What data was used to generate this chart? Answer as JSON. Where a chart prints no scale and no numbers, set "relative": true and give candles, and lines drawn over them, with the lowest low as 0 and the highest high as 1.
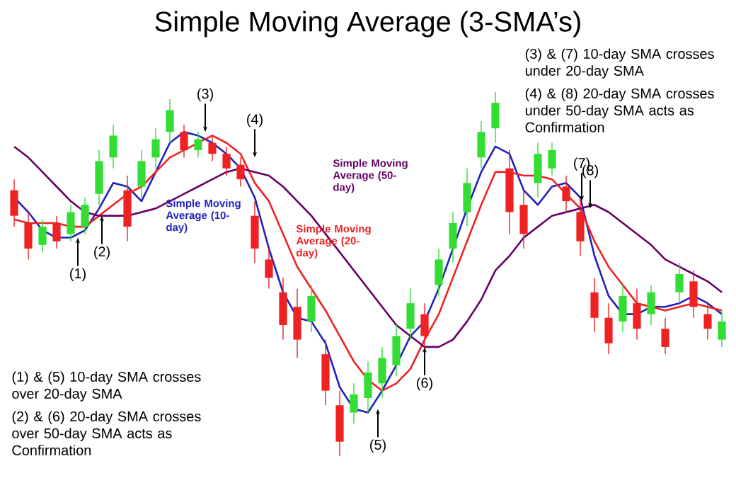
{
  "chart_data": {
    "type": "candlestick",
    "title": "Simple Moving Average (3-SMA’s)",
    "relative": true,
    "categories": [
      null,
      null,
      null,
      null,
      null,
      null,
      null,
      null,
      null,
      null,
      null,
      null,
      null,
      null,
      null,
      null,
      null,
      null,
      null,
      null,
      null,
      null,
      null,
      null,
      null,
      null,
      null,
      null,
      null,
      null,
      null,
      null,
      null,
      null,
      null,
      null,
      null,
      null,
      null,
      null,
      null,
      null,
      null,
      null,
      null,
      null,
      null,
      null,
      null,
      null,
      null
    ],
    "ohlc": [
      [
        0.73,
        0.76,
        0.63,
        0.66
      ],
      [
        0.64,
        0.67,
        0.54,
        0.57
      ],
      [
        0.58,
        0.65,
        0.56,
        0.63
      ],
      [
        0.64,
        0.66,
        0.57,
        0.59
      ],
      [
        0.61,
        0.69,
        0.59,
        0.67
      ],
      [
        0.63,
        0.71,
        0.61,
        0.69
      ],
      [
        0.72,
        0.84,
        0.69,
        0.81
      ],
      [
        0.82,
        0.91,
        0.79,
        0.88
      ],
      [
        0.73,
        0.77,
        0.59,
        0.63
      ],
      [
        0.74,
        0.84,
        0.71,
        0.81
      ],
      [
        0.82,
        0.9,
        0.79,
        0.87
      ],
      [
        0.89,
        0.98,
        0.86,
        0.95
      ],
      [
        0.89,
        0.91,
        0.82,
        0.84
      ],
      [
        0.84,
        0.89,
        0.82,
        0.87
      ],
      [
        0.86,
        0.88,
        0.81,
        0.83
      ],
      [
        0.83,
        0.85,
        0.77,
        0.79
      ],
      [
        0.8,
        0.82,
        0.74,
        0.76
      ],
      [
        0.66,
        0.7,
        0.53,
        0.57
      ],
      [
        0.54,
        0.57,
        0.46,
        0.49
      ],
      [
        0.45,
        0.49,
        0.32,
        0.36
      ],
      [
        0.41,
        0.46,
        0.27,
        0.32
      ],
      [
        0.37,
        0.47,
        0.34,
        0.44
      ],
      [
        0.28,
        0.32,
        0.14,
        0.18
      ],
      [
        0.14,
        0.18,
        0,
        0.04
      ],
      [
        0.12,
        0.2,
        0.09,
        0.17
      ],
      [
        0.16,
        0.26,
        0.12,
        0.23
      ],
      [
        0.2,
        0.3,
        0.16,
        0.27
      ],
      [
        0.25,
        0.36,
        0.22,
        0.33
      ],
      [
        0.35,
        0.46,
        0.32,
        0.42
      ],
      [
        0.39,
        0.42,
        0.3,
        0.33
      ],
      [
        0.47,
        0.57,
        0.44,
        0.54
      ],
      [
        0.57,
        0.67,
        0.53,
        0.64
      ],
      [
        0.67,
        0.79,
        0.63,
        0.75
      ],
      [
        0.82,
        0.92,
        0.79,
        0.89
      ],
      [
        0.9,
        1,
        0.86,
        0.97
      ],
      [
        0.79,
        0.84,
        0.61,
        0.67
      ],
      [
        0.69,
        0.73,
        0.57,
        0.61
      ],
      [
        0.75,
        0.86,
        0.71,
        0.83
      ],
      [
        0.79,
        0.86,
        0.77,
        0.84
      ],
      [
        0.74,
        0.77,
        0.67,
        0.7
      ],
      [
        0.67,
        0.71,
        0.55,
        0.59
      ],
      [
        0.45,
        0.49,
        0.34,
        0.38
      ],
      [
        0.38,
        0.42,
        0.28,
        0.31
      ],
      [
        0.37,
        0.47,
        0.34,
        0.44
      ],
      [
        0.42,
        0.46,
        0.32,
        0.35
      ],
      [
        0.39,
        0.47,
        0.36,
        0.45
      ],
      [
        0.35,
        0.38,
        0.28,
        0.3
      ],
      [
        0.45,
        0.53,
        0.42,
        0.5
      ],
      [
        0.48,
        0.51,
        0.38,
        0.41
      ],
      [
        0.39,
        0.42,
        0.32,
        0.35
      ],
      [
        0.32,
        0.4,
        0.3,
        0.37
      ]
    ],
    "colors": [
      "#ee2222",
      "#ee2222",
      "#33dd33",
      "#ee2222",
      "#33dd33",
      "#33dd33",
      "#33dd33",
      "#33dd33",
      "#ee2222",
      "#33dd33",
      "#33dd33",
      "#33dd33",
      "#ee2222",
      "#33dd33",
      "#ee2222",
      "#ee2222",
      "#ee2222",
      "#ee2222",
      "#ee2222",
      "#ee2222",
      "#ee2222",
      "#33dd33",
      "#ee2222",
      "#ee2222",
      "#33dd33",
      "#33dd33",
      "#33dd33",
      "#33dd33",
      "#33dd33",
      "#ee2222",
      "#33dd33",
      "#33dd33",
      "#33dd33",
      "#33dd33",
      "#33dd33",
      "#ee2222",
      "#ee2222",
      "#33dd33",
      "#33dd33",
      "#ee2222",
      "#ee2222",
      "#ee2222",
      "#ee2222",
      "#33dd33",
      "#ee2222",
      "#33dd33",
      "#ee2222",
      "#33dd33",
      "#ee2222",
      "#ee2222",
      "#33dd33"
    ],
    "series": [
      {
        "type": "line",
        "name": "Simple Moving Average (10-day)",
        "color": "#2222bb",
        "values": [
          0.71,
          0.67,
          0.62,
          0.6,
          0.6,
          0.62,
          0.68,
          0.75,
          0.74,
          0.7,
          0.78,
          0.86,
          0.89,
          0.88,
          0.86,
          0.83,
          0.79,
          0.71,
          0.57,
          0.45,
          0.38,
          0.37,
          0.31,
          0.19,
          0.13,
          0.12,
          0.18,
          0.25,
          0.33,
          0.37,
          0.46,
          0.57,
          0.68,
          0.78,
          0.85,
          0.83,
          0.73,
          0.69,
          0.74,
          0.75,
          0.71,
          0.55,
          0.44,
          0.39,
          0.39,
          0.41,
          0.41,
          0.42,
          0.44,
          0.42,
          0.39
        ]
      },
      {
        "type": "line",
        "name": "Simple Moving Average (20-day)",
        "color": "#ee2222",
        "values": [
          0.65,
          0.64,
          0.64,
          0.64,
          0.63,
          0.63,
          0.66,
          0.69,
          0.72,
          0.74,
          0.78,
          0.82,
          0.84,
          0.86,
          0.88,
          0.86,
          0.83,
          0.75,
          0.7,
          0.61,
          0.52,
          0.46,
          0.4,
          0.33,
          0.26,
          0.21,
          0.18,
          0.2,
          0.24,
          0.32,
          0.39,
          0.49,
          0.59,
          0.69,
          0.78,
          0.78,
          0.77,
          0.77,
          0.76,
          0.72,
          0.68,
          0.59,
          0.52,
          0.47,
          0.42,
          0.41,
          0.4,
          0.41,
          0.42,
          0.41,
          0.4
        ]
      },
      {
        "type": "line",
        "name": "Simple Moving Average (50-day)",
        "color": "#660066",
        "values": [
          0.85,
          0.82,
          0.78,
          0.74,
          0.7,
          0.67,
          0.66,
          0.66,
          0.66,
          0.67,
          0.68,
          0.7,
          0.72,
          0.74,
          0.76,
          0.78,
          0.79,
          0.78,
          0.77,
          0.74,
          0.7,
          0.66,
          0.61,
          0.56,
          0.51,
          0.46,
          0.41,
          0.36,
          0.33,
          0.3,
          0.3,
          0.32,
          0.37,
          0.43,
          0.51,
          0.55,
          0.6,
          0.63,
          0.66,
          0.67,
          0.68,
          0.69,
          0.67,
          0.64,
          0.61,
          0.58,
          0.54,
          0.52,
          0.5,
          0.48,
          0.45
        ]
      }
    ],
    "annotations": [
      "(1) & (5) 10-day SMA crosses over 20-day SMA",
      "(2) & (6) 20-day SMA crosses over 50-day SMA acts as Confirmation",
      "(3) & (7) 10-day SMA crosses under 20-day SMA",
      "(4) & (8) 20-day SMA crosses under 50-day SMA acts as Confirmation",
      "(1)",
      "(2)",
      "(3)",
      "(4)",
      "(5)",
      "(6)",
      "(7)",
      "(8)"
    ]
  }
}
